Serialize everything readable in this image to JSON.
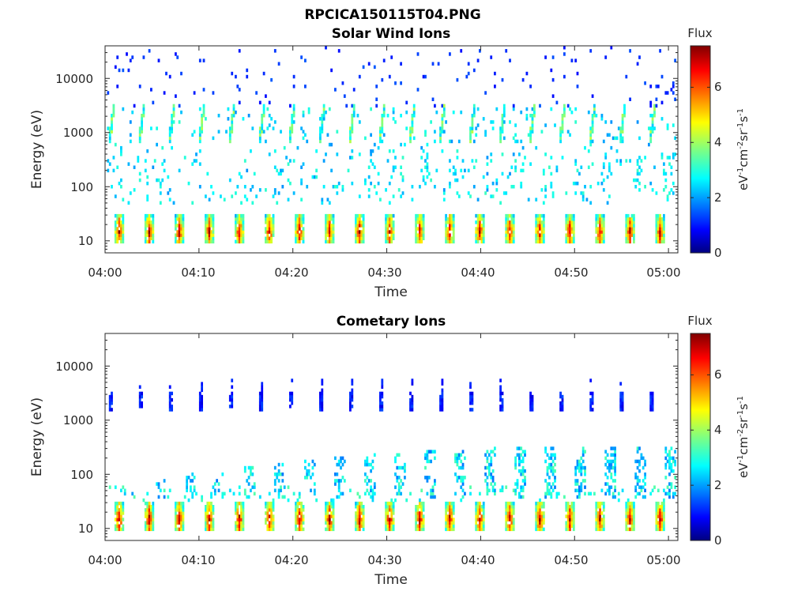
{
  "figure_title": "RPCICA150115T04.PNG",
  "colorbar": {
    "title": "Flux",
    "range": [
      0,
      7.5
    ],
    "ticks": [
      "0",
      "2",
      "4",
      "6"
    ],
    "label_parts": [
      "eV",
      "-1",
      "cm",
      "-2",
      "sr",
      "-1",
      "s",
      "-1"
    ],
    "colormap": "jet"
  },
  "chart_data": [
    {
      "type": "heatmap",
      "title": "Solar Wind Ions",
      "xlabel": "Time",
      "ylabel": "Energy (eV)",
      "x_range": [
        "04:00",
        "05:01"
      ],
      "y_range_eV": [
        6,
        40000
      ],
      "y_scale": "log",
      "x_tick_labels": [
        "04:00",
        "04:10",
        "04:20",
        "04:30",
        "04:40",
        "04:50",
        "05:00"
      ],
      "y_tick_labels": [
        "10",
        "100",
        "1000",
        "10000"
      ],
      "sweep_period_min": 3.2,
      "features": [
        {
          "name": "low-energy band",
          "energy_eV": [
            8,
            30
          ],
          "peak_log_flux": 7
        },
        {
          "name": "solar wind beam",
          "energy_eV": [
            700,
            3000
          ],
          "peak_log_flux": 3.5
        },
        {
          "name": "sparse background",
          "energy_eV": [
            50,
            40000
          ],
          "peak_log_flux": 2.5
        }
      ]
    },
    {
      "type": "heatmap",
      "title": "Cometary Ions",
      "xlabel": "Time",
      "ylabel": "Energy (eV)",
      "x_range": [
        "04:00",
        "05:01"
      ],
      "y_range_eV": [
        6,
        40000
      ],
      "y_scale": "log",
      "x_tick_labels": [
        "04:00",
        "04:10",
        "04:20",
        "04:30",
        "04:40",
        "04:50",
        "05:00"
      ],
      "y_tick_labels": [
        "10",
        "100",
        "1000",
        "10000"
      ],
      "sweep_period_min": 3.2,
      "features": [
        {
          "name": "low-energy band",
          "energy_eV": [
            8,
            30
          ],
          "peak_log_flux": 7.2
        },
        {
          "name": "high-energy streak",
          "energy_eV": [
            1500,
            3000
          ],
          "peak_log_flux": 1.3
        },
        {
          "name": "mid-energy tails",
          "energy_eV": [
            40,
            300
          ],
          "peak_log_flux": 3
        }
      ]
    }
  ]
}
